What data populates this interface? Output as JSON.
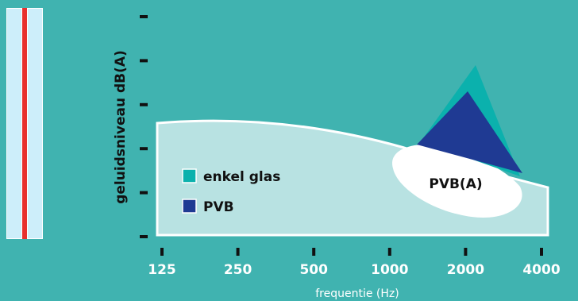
{
  "chart_data": {
    "type": "area",
    "title": "",
    "xlabel": "frequentie (Hz)",
    "ylabel": "geluidsniveau dB(A)",
    "x_ticks": [
      "125",
      "250",
      "500",
      "1000",
      "2000",
      "4000"
    ],
    "y_tick_count": 6,
    "y_tick_labels_shown": false,
    "series": [
      {
        "name": "enkel glas",
        "color": "#0bb1ad"
      },
      {
        "name": "PVB",
        "color": "#1f3a93"
      }
    ],
    "region_label": "PVB(A)",
    "legend": "inside-left",
    "grid": false
  },
  "colors": {
    "background": "#40b3b0",
    "area_fill": "#b8e2e2",
    "enkel_glas": "#0bb1ad",
    "pvb": "#1f3a93",
    "pvb_a_region": "#ffffff",
    "axis": "#111111",
    "glass_pane": "#cdeefa",
    "glass_interlayer": "#e8302e"
  }
}
